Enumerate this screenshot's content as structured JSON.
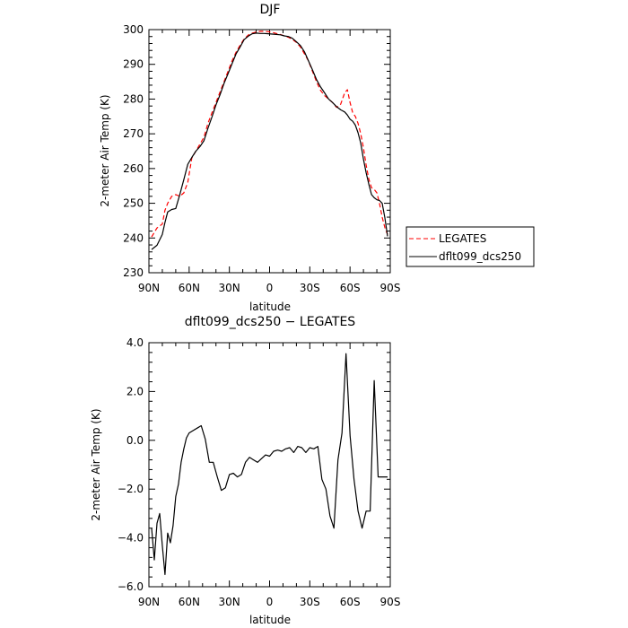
{
  "chart_data": [
    {
      "type": "line",
      "title": "DJF",
      "xlabel": "latitude",
      "ylabel": "2-meter Air Temp (K)",
      "xlim": [
        -90,
        90
      ],
      "ylim": [
        230,
        300
      ],
      "x_ticks": [
        -90,
        -60,
        -30,
        0,
        30,
        60,
        90
      ],
      "x_tick_labels": [
        "90N",
        "60N",
        "30N",
        "0",
        "30S",
        "60S",
        "90S"
      ],
      "y_ticks": [
        230,
        240,
        250,
        260,
        270,
        280,
        290,
        300
      ],
      "y_tick_labels": [
        "230",
        "240",
        "250",
        "260",
        "270",
        "280",
        "290",
        "300"
      ],
      "legend_position": "right",
      "series": [
        {
          "name": "LEGATES",
          "color": "#ff0000",
          "dash": "dashed",
          "x": [
            -88,
            -84,
            -80,
            -78,
            -76,
            -73,
            -70,
            -67,
            -64,
            -61,
            -58,
            -55,
            -52,
            -49,
            -46,
            -43,
            -40,
            -37,
            -34,
            -31,
            -28,
            -25,
            -22,
            -19,
            -16,
            -13,
            -10,
            -7,
            -4,
            -1,
            2,
            5,
            8,
            11,
            14,
            17,
            20,
            23,
            26,
            29,
            32,
            35,
            38,
            41,
            44,
            47,
            50,
            53,
            56,
            58,
            60,
            62,
            64,
            66,
            68,
            70,
            72,
            74,
            76,
            78,
            80,
            82,
            84,
            86,
            88
          ],
          "y": [
            240.3,
            242.9,
            244,
            248,
            250,
            252,
            252.5,
            252,
            253,
            256,
            263,
            265,
            267,
            269,
            273,
            276,
            279,
            282,
            285,
            288,
            291,
            293.5,
            295.5,
            297.3,
            298.4,
            299,
            299.3,
            299.5,
            299.5,
            299.4,
            299.2,
            298.9,
            298.6,
            298.2,
            297.8,
            297.2,
            296.3,
            295,
            293,
            291,
            288,
            285,
            282.5,
            281,
            280,
            279,
            277.6,
            278.5,
            281.8,
            282.7,
            279,
            276,
            275,
            273,
            270,
            266,
            261,
            257,
            254.5,
            254,
            253,
            250,
            246,
            243,
            241
          ]
        },
        {
          "name": "dflt099_dcs250",
          "color": "#000000",
          "dash": "solid",
          "x": [
            -88,
            -84,
            -80,
            -78,
            -76,
            -73,
            -70,
            -67,
            -64,
            -61,
            -58,
            -55,
            -52,
            -49,
            -46,
            -43,
            -40,
            -37,
            -34,
            -31,
            -28,
            -25,
            -22,
            -19,
            -16,
            -13,
            -10,
            -7,
            -4,
            -1,
            2,
            5,
            8,
            11,
            14,
            17,
            20,
            23,
            26,
            29,
            32,
            35,
            38,
            41,
            44,
            47,
            50,
            53,
            56,
            58,
            60,
            62,
            64,
            66,
            68,
            70,
            72,
            74,
            76,
            78,
            80,
            82,
            84,
            86,
            88
          ],
          "y": [
            236.7,
            237.9,
            241,
            244.5,
            247.5,
            248.2,
            248.5,
            252.5,
            256.8,
            261.2,
            263.2,
            265,
            266.3,
            268,
            271.6,
            274.8,
            278.3,
            281.2,
            284.5,
            287.3,
            290.2,
            293,
            295,
            297.1,
            298.1,
            298.8,
            299,
            298.9,
            298.9,
            298.8,
            298.7,
            298.6,
            298.5,
            298.2,
            298,
            297.5,
            296.5,
            295.4,
            293.6,
            291,
            288.4,
            285.6,
            283.5,
            281.8,
            280,
            279,
            277.8,
            276.9,
            276.3,
            275.4,
            274.2,
            273.6,
            272.5,
            270.3,
            267.3,
            262.7,
            258.8,
            255.5,
            252.5,
            251.6,
            251,
            250.8,
            250,
            245.8,
            240.5
          ]
        }
      ]
    },
    {
      "type": "line",
      "title": "dflt099_dcs250 − LEGATES",
      "xlabel": "latitude",
      "ylabel": "2-meter Air Temp (K)",
      "xlim": [
        -90,
        90
      ],
      "ylim": [
        -6,
        4
      ],
      "x_ticks": [
        -90,
        -60,
        -30,
        0,
        30,
        60,
        90
      ],
      "x_tick_labels": [
        "90N",
        "60N",
        "30N",
        "0",
        "30S",
        "60S",
        "90S"
      ],
      "y_ticks": [
        -6,
        -4,
        -2,
        0,
        2,
        4
      ],
      "y_tick_labels": [
        "−6.0",
        "−4.0",
        "−2.0",
        "0.0",
        "2.0",
        "4.0"
      ],
      "series": [
        {
          "color": "#000000",
          "dash": "solid",
          "x": [
            -88,
            -86,
            -84,
            -82,
            -80,
            -78,
            -76,
            -74,
            -72,
            -70,
            -68,
            -66,
            -64,
            -62,
            -60,
            -57,
            -54,
            -51,
            -48,
            -45,
            -42,
            -39,
            -36,
            -33,
            -30,
            -27,
            -24,
            -21,
            -18,
            -15,
            -12,
            -9,
            -6,
            -3,
            0,
            3,
            6,
            9,
            12,
            15,
            18,
            21,
            24,
            27,
            30,
            33,
            36,
            39,
            42,
            45,
            48,
            51,
            54,
            57,
            60,
            63,
            66,
            69,
            72,
            75,
            78,
            81,
            84,
            86,
            88
          ],
          "y": [
            -3.6,
            -4.9,
            -3.4,
            -3,
            -4.3,
            -5.5,
            -3.8,
            -4.2,
            -3.5,
            -2.3,
            -1.8,
            -0.9,
            -0.35,
            0.1,
            0.3,
            0.4,
            0.5,
            0.6,
            0.05,
            -0.9,
            -0.9,
            -1.5,
            -2.05,
            -1.95,
            -1.4,
            -1.35,
            -1.5,
            -1.4,
            -0.9,
            -0.7,
            -0.8,
            -0.9,
            -0.75,
            -0.6,
            -0.65,
            -0.45,
            -0.4,
            -0.45,
            -0.35,
            -0.3,
            -0.5,
            -0.25,
            -0.3,
            -0.5,
            -0.3,
            -0.35,
            -0.25,
            -1.6,
            -2,
            -3.1,
            -3.6,
            -0.8,
            0.3,
            3.55,
            0.2,
            -1.6,
            -2.9,
            -3.6,
            -2.9,
            -2.9,
            2.45,
            -1.5,
            -1.5,
            -1.5,
            -1.5
          ]
        }
      ]
    }
  ]
}
